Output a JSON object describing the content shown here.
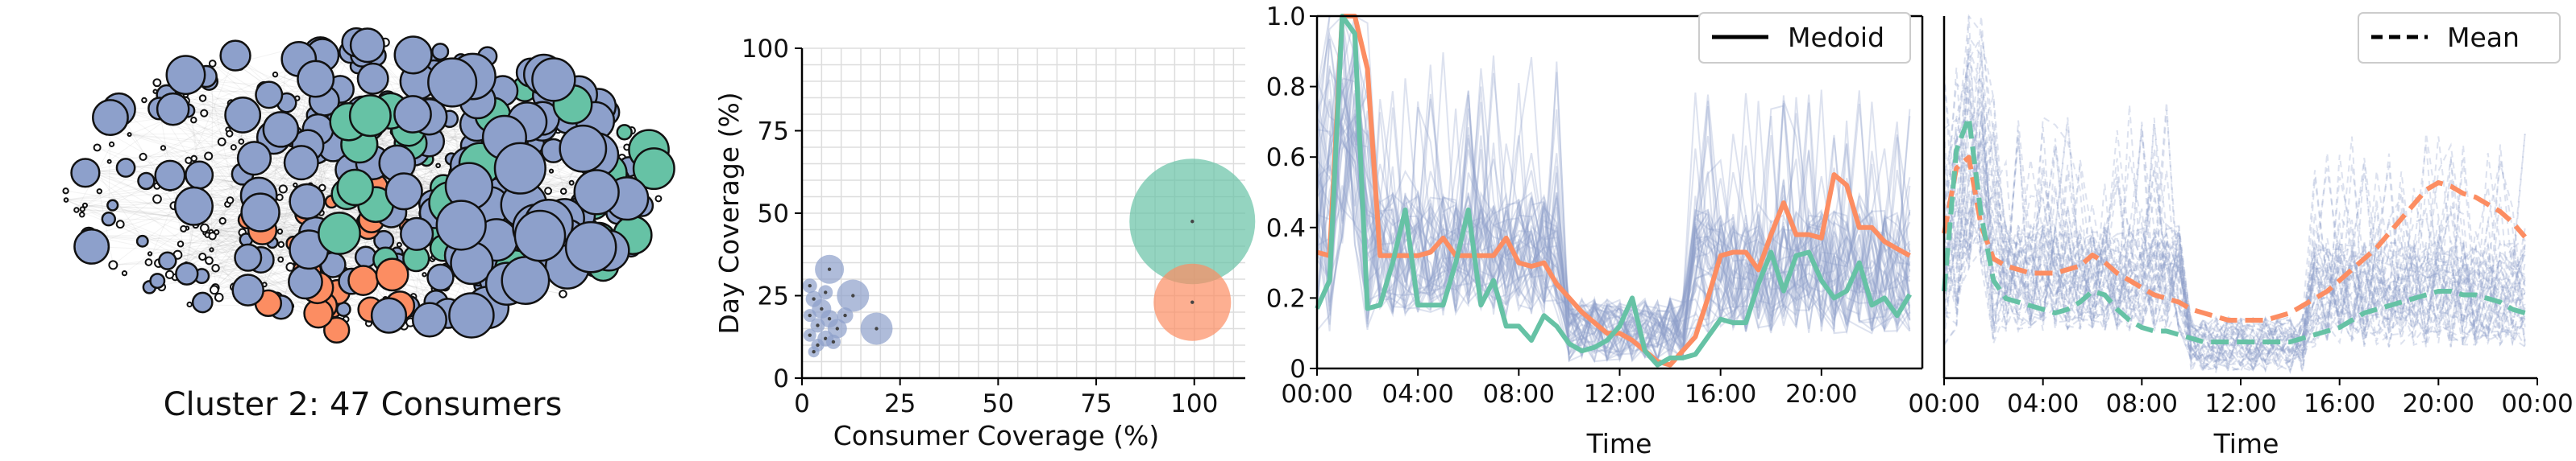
{
  "network": {
    "caption": "Cluster 2: 47 Consumers",
    "node_colors": {
      "green": "#66c2a5",
      "orange": "#fc8d62",
      "blue": "#8da0cb",
      "black": "#111111"
    }
  },
  "chart_data": [
    {
      "type": "scatter",
      "title": "",
      "xlabel": "Consumer Coverage (%)",
      "ylabel": "Day Coverage (%)",
      "xlim": [
        0,
        113
      ],
      "ylim": [
        0,
        100
      ],
      "xticks": [
        "0",
        "25",
        "50",
        "75",
        "100"
      ],
      "yticks": [
        "0",
        "25",
        "50",
        "75",
        "100"
      ],
      "grid": true,
      "points": [
        {
          "x": 99.5,
          "y": 47.5,
          "size": 78,
          "color": "#66c2a5"
        },
        {
          "x": 99.5,
          "y": 23,
          "size": 48,
          "color": "#fc8d62"
        },
        {
          "x": 7,
          "y": 33,
          "size": 18,
          "color": "#8da0cb"
        },
        {
          "x": 13,
          "y": 25,
          "size": 20,
          "color": "#8da0cb"
        },
        {
          "x": 19,
          "y": 15,
          "size": 20,
          "color": "#8da0cb"
        },
        {
          "x": 2,
          "y": 28,
          "size": 9,
          "color": "#8da0cb"
        },
        {
          "x": 3,
          "y": 24,
          "size": 10,
          "color": "#8da0cb"
        },
        {
          "x": 5,
          "y": 21,
          "size": 12,
          "color": "#8da0cb"
        },
        {
          "x": 2,
          "y": 19,
          "size": 8,
          "color": "#8da0cb"
        },
        {
          "x": 7,
          "y": 18,
          "size": 11,
          "color": "#8da0cb"
        },
        {
          "x": 4,
          "y": 16,
          "size": 9,
          "color": "#8da0cb"
        },
        {
          "x": 9,
          "y": 15,
          "size": 12,
          "color": "#8da0cb"
        },
        {
          "x": 2,
          "y": 13,
          "size": 8,
          "color": "#8da0cb"
        },
        {
          "x": 6,
          "y": 12,
          "size": 10,
          "color": "#8da0cb"
        },
        {
          "x": 4,
          "y": 10,
          "size": 8,
          "color": "#8da0cb"
        },
        {
          "x": 8,
          "y": 11,
          "size": 9,
          "color": "#8da0cb"
        },
        {
          "x": 3,
          "y": 8,
          "size": 7,
          "color": "#8da0cb"
        },
        {
          "x": 11,
          "y": 19,
          "size": 10,
          "color": "#8da0cb"
        },
        {
          "x": 6,
          "y": 26,
          "size": 9,
          "color": "#8da0cb"
        }
      ]
    },
    {
      "type": "line",
      "title": "",
      "xlabel": "Time",
      "ylabel": "",
      "ylim": [
        0,
        1.0
      ],
      "xticks": [
        "00:00",
        "04:00",
        "08:00",
        "12:00",
        "16:00",
        "20:00"
      ],
      "yticks": [
        "0",
        "0.2",
        "0.4",
        "0.6",
        "0.8",
        "1.0"
      ],
      "x_hours": [
        0,
        0.5,
        1,
        1.5,
        2,
        2.5,
        3,
        3.5,
        4,
        4.5,
        5,
        5.5,
        6,
        6.5,
        7,
        7.5,
        8,
        8.5,
        9,
        9.5,
        10,
        10.5,
        11,
        11.5,
        12,
        12.5,
        13,
        13.5,
        14,
        14.5,
        15,
        15.5,
        16,
        16.5,
        17,
        17.5,
        18,
        18.5,
        19,
        19.5,
        20,
        20.5,
        21,
        21.5,
        22,
        22.5,
        23,
        23.5
      ],
      "legend": {
        "label": "Medoid",
        "position": "top-right",
        "line_style": "solid"
      },
      "series": [
        {
          "color": "#fc8d62",
          "values": [
            0.33,
            0.32,
            1.0,
            1.0,
            0.85,
            0.32,
            0.32,
            0.32,
            0.32,
            0.33,
            0.37,
            0.32,
            0.32,
            0.32,
            0.32,
            0.37,
            0.3,
            0.29,
            0.3,
            0.24,
            0.2,
            0.16,
            0.13,
            0.1,
            0.1,
            0.08,
            0.05,
            0.02,
            0.01,
            0.05,
            0.09,
            0.2,
            0.32,
            0.33,
            0.33,
            0.28,
            0.38,
            0.47,
            0.38,
            0.38,
            0.37,
            0.55,
            0.52,
            0.4,
            0.4,
            0.36,
            0.34,
            0.32
          ]
        },
        {
          "color": "#66c2a5",
          "values": [
            0.17,
            0.25,
            1.0,
            0.95,
            0.17,
            0.18,
            0.3,
            0.45,
            0.18,
            0.18,
            0.18,
            0.3,
            0.45,
            0.18,
            0.25,
            0.12,
            0.12,
            0.08,
            0.15,
            0.12,
            0.07,
            0.05,
            0.06,
            0.08,
            0.12,
            0.2,
            0.05,
            0.01,
            0.03,
            0.03,
            0.04,
            0.09,
            0.14,
            0.13,
            0.13,
            0.24,
            0.33,
            0.22,
            0.32,
            0.33,
            0.25,
            0.2,
            0.22,
            0.3,
            0.18,
            0.2,
            0.15,
            0.21
          ]
        }
      ]
    },
    {
      "type": "line",
      "title": "",
      "xlabel": "Time",
      "ylabel": "",
      "ylim": [
        0,
        1.0
      ],
      "xticks": [
        "00:00",
        "04:00",
        "08:00",
        "12:00",
        "16:00",
        "20:00",
        "00:00"
      ],
      "x_hours": [
        0,
        0.5,
        1,
        1.5,
        2,
        2.5,
        3,
        3.5,
        4,
        4.5,
        5,
        5.5,
        6,
        6.5,
        7,
        7.5,
        8,
        8.5,
        9,
        9.5,
        10,
        10.5,
        11,
        11.5,
        12,
        12.5,
        13,
        13.5,
        14,
        14.5,
        15,
        15.5,
        16,
        16.5,
        17,
        17.5,
        18,
        18.5,
        19,
        19.5,
        20,
        20.5,
        21,
        21.5,
        22,
        22.5,
        23,
        23.5
      ],
      "legend": {
        "label": "Mean",
        "position": "top-right",
        "line_style": "dashed"
      },
      "series": [
        {
          "color": "#fc8d62",
          "values": [
            0.4,
            0.58,
            0.61,
            0.42,
            0.33,
            0.31,
            0.3,
            0.29,
            0.29,
            0.29,
            0.3,
            0.31,
            0.34,
            0.32,
            0.29,
            0.27,
            0.25,
            0.23,
            0.22,
            0.21,
            0.19,
            0.18,
            0.17,
            0.16,
            0.16,
            0.16,
            0.16,
            0.17,
            0.18,
            0.2,
            0.22,
            0.24,
            0.27,
            0.3,
            0.33,
            0.36,
            0.4,
            0.44,
            0.48,
            0.52,
            0.54,
            0.53,
            0.51,
            0.5,
            0.48,
            0.46,
            0.43,
            0.39
          ]
        },
        {
          "color": "#66c2a5",
          "values": [
            0.24,
            0.63,
            0.72,
            0.45,
            0.27,
            0.22,
            0.21,
            0.2,
            0.19,
            0.18,
            0.19,
            0.21,
            0.24,
            0.23,
            0.19,
            0.16,
            0.14,
            0.13,
            0.13,
            0.12,
            0.11,
            0.1,
            0.1,
            0.1,
            0.1,
            0.1,
            0.1,
            0.1,
            0.1,
            0.11,
            0.12,
            0.13,
            0.14,
            0.16,
            0.18,
            0.19,
            0.2,
            0.21,
            0.22,
            0.23,
            0.24,
            0.24,
            0.23,
            0.23,
            0.22,
            0.21,
            0.19,
            0.18
          ]
        }
      ]
    }
  ]
}
